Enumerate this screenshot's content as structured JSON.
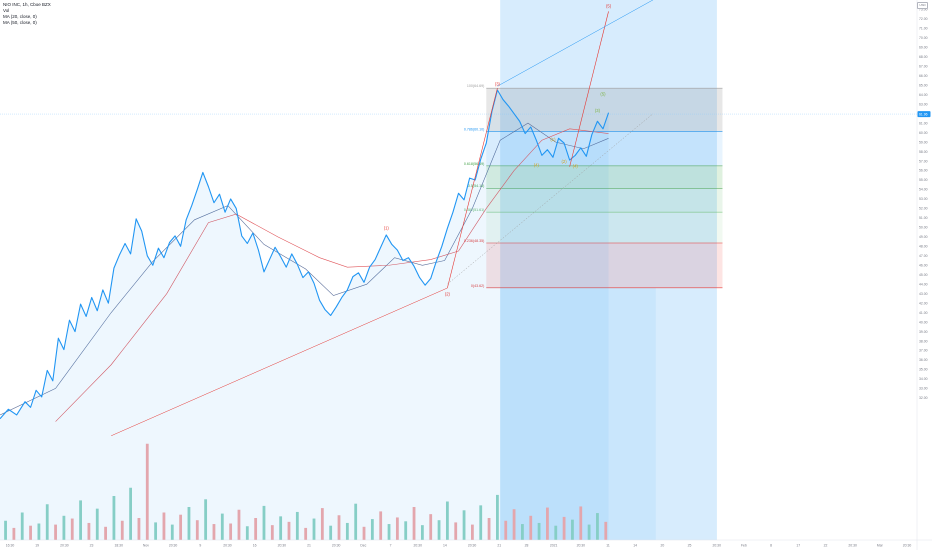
{
  "legend": {
    "symbol_line": "NIO INC, 1h, Cboe BZX",
    "vol_label": "Vol",
    "ma1_label": "MA (20, close, 0)",
    "ma2_label": "MA (50, close, 0)"
  },
  "toolbar": {
    "settings_label": "USD"
  },
  "colors": {
    "price_line": "#2196f3",
    "ma_fast": "#5b6e9a",
    "ma_slow": "#e0565b",
    "vol_up": "#8fd3c3",
    "vol_down": "#f3a8a8",
    "accent_red": "#e53935",
    "accent_green": "#66bb6a",
    "projection_blue": "#2196f3"
  },
  "chart_data": {
    "type": "line",
    "title": "NIO INC, 1h, Cboe BZX",
    "ylim": [
      17.0,
      74.0
    ],
    "ytick_labels": [
      "74.00",
      "73.00",
      "72.00",
      "71.00",
      "70.00",
      "69.00",
      "68.00",
      "67.00",
      "66.00",
      "65.00",
      "64.00",
      "63.00",
      "62.00",
      "61.00",
      "60.00",
      "59.00",
      "58.00",
      "57.00",
      "56.00",
      "55.00",
      "54.00",
      "53.00",
      "52.00",
      "51.00",
      "50.00",
      "49.00",
      "48.00",
      "47.00",
      "46.00",
      "45.00",
      "44.00",
      "43.00",
      "42.00",
      "41.00",
      "40.00",
      "39.00",
      "38.00",
      "37.00",
      "36.00",
      "35.00",
      "34.00",
      "33.00",
      "32.00"
    ],
    "xtick_labels": [
      "16:30",
      "19",
      "20:30",
      "23",
      "18:30",
      "Nov",
      "20:30",
      "9",
      "20:30",
      "16",
      "20:30",
      "21",
      "20:30",
      "Dec",
      "7",
      "20:30",
      "14",
      "20:30",
      "21",
      "28",
      "2021",
      "20:30",
      "11",
      "14",
      "20",
      "25",
      "20:30",
      "Feb",
      "8",
      "17",
      "22",
      "20:30",
      "Mar",
      "20:30"
    ],
    "current_price": "61.96",
    "price": [
      {
        "x": 0,
        "y": 29.8
      },
      {
        "x": 3,
        "y": 30.8
      },
      {
        "x": 6,
        "y": 30.2
      },
      {
        "x": 9,
        "y": 31.6
      },
      {
        "x": 11,
        "y": 31.0
      },
      {
        "x": 13,
        "y": 32.8
      },
      {
        "x": 15,
        "y": 32.1
      },
      {
        "x": 17,
        "y": 34.9
      },
      {
        "x": 19,
        "y": 33.8
      },
      {
        "x": 21,
        "y": 38.3
      },
      {
        "x": 23,
        "y": 37.1
      },
      {
        "x": 25,
        "y": 40.2
      },
      {
        "x": 27,
        "y": 39.0
      },
      {
        "x": 29,
        "y": 41.9
      },
      {
        "x": 31,
        "y": 40.6
      },
      {
        "x": 33,
        "y": 42.6
      },
      {
        "x": 35,
        "y": 41.2
      },
      {
        "x": 37,
        "y": 43.4
      },
      {
        "x": 39,
        "y": 42.0
      },
      {
        "x": 41,
        "y": 45.7
      },
      {
        "x": 43,
        "y": 47.1
      },
      {
        "x": 45,
        "y": 48.3
      },
      {
        "x": 47,
        "y": 47.2
      },
      {
        "x": 49,
        "y": 50.9
      },
      {
        "x": 51,
        "y": 49.6
      },
      {
        "x": 53,
        "y": 47.0
      },
      {
        "x": 55,
        "y": 46.0
      },
      {
        "x": 57,
        "y": 47.8
      },
      {
        "x": 59,
        "y": 46.8
      },
      {
        "x": 61,
        "y": 48.4
      },
      {
        "x": 63,
        "y": 49.1
      },
      {
        "x": 65,
        "y": 48.0
      },
      {
        "x": 67,
        "y": 50.8
      },
      {
        "x": 69,
        "y": 52.3
      },
      {
        "x": 71,
        "y": 54.0
      },
      {
        "x": 73,
        "y": 55.8
      },
      {
        "x": 75,
        "y": 54.3
      },
      {
        "x": 77,
        "y": 52.6
      },
      {
        "x": 79,
        "y": 53.5
      },
      {
        "x": 81,
        "y": 51.6
      },
      {
        "x": 83,
        "y": 53.0
      },
      {
        "x": 85,
        "y": 52.0
      },
      {
        "x": 87,
        "y": 49.1
      },
      {
        "x": 89,
        "y": 48.3
      },
      {
        "x": 91,
        "y": 49.4
      },
      {
        "x": 93,
        "y": 47.6
      },
      {
        "x": 95,
        "y": 45.3
      },
      {
        "x": 97,
        "y": 46.6
      },
      {
        "x": 99,
        "y": 47.9
      },
      {
        "x": 101,
        "y": 46.9
      },
      {
        "x": 103,
        "y": 45.8
      },
      {
        "x": 105,
        "y": 47.2
      },
      {
        "x": 107,
        "y": 46.1
      },
      {
        "x": 109,
        "y": 44.7
      },
      {
        "x": 111,
        "y": 45.3
      },
      {
        "x": 113,
        "y": 44.1
      },
      {
        "x": 115,
        "y": 42.3
      },
      {
        "x": 117,
        "y": 41.3
      },
      {
        "x": 119,
        "y": 40.7
      },
      {
        "x": 121,
        "y": 41.6
      },
      {
        "x": 123,
        "y": 42.6
      },
      {
        "x": 125,
        "y": 43.4
      },
      {
        "x": 127,
        "y": 44.8
      },
      {
        "x": 129,
        "y": 45.2
      },
      {
        "x": 131,
        "y": 44.2
      },
      {
        "x": 133,
        "y": 45.8
      },
      {
        "x": 135,
        "y": 46.6
      },
      {
        "x": 137,
        "y": 47.9
      },
      {
        "x": 139,
        "y": 49.2
      },
      {
        "x": 141,
        "y": 48.2
      },
      {
        "x": 143,
        "y": 47.6
      },
      {
        "x": 145,
        "y": 46.5
      },
      {
        "x": 147,
        "y": 46.8
      },
      {
        "x": 149,
        "y": 45.9
      },
      {
        "x": 151,
        "y": 44.7
      },
      {
        "x": 153,
        "y": 43.9
      },
      {
        "x": 155,
        "y": 44.6
      },
      {
        "x": 157,
        "y": 46.4
      },
      {
        "x": 159,
        "y": 48.0
      },
      {
        "x": 161,
        "y": 49.9
      },
      {
        "x": 163,
        "y": 51.6
      },
      {
        "x": 165,
        "y": 53.6
      },
      {
        "x": 167,
        "y": 52.9
      },
      {
        "x": 169,
        "y": 55.2
      },
      {
        "x": 171,
        "y": 55.0
      },
      {
        "x": 173,
        "y": 57.2
      },
      {
        "x": 175,
        "y": 58.9
      },
      {
        "x": 177,
        "y": 62.2
      },
      {
        "x": 179,
        "y": 64.5
      },
      {
        "x": 181,
        "y": 63.5
      },
      {
        "x": 183,
        "y": 62.8
      },
      {
        "x": 185,
        "y": 62.0
      },
      {
        "x": 187,
        "y": 61.2
      },
      {
        "x": 189,
        "y": 59.9
      },
      {
        "x": 191,
        "y": 60.6
      },
      {
        "x": 193,
        "y": 59.2
      },
      {
        "x": 195,
        "y": 57.6
      },
      {
        "x": 197,
        "y": 58.2
      },
      {
        "x": 199,
        "y": 57.4
      },
      {
        "x": 201,
        "y": 59.4
      },
      {
        "x": 203,
        "y": 58.9
      },
      {
        "x": 205,
        "y": 57.1
      },
      {
        "x": 207,
        "y": 57.6
      },
      {
        "x": 209,
        "y": 58.4
      },
      {
        "x": 211,
        "y": 57.5
      },
      {
        "x": 213,
        "y": 59.8
      },
      {
        "x": 215,
        "y": 61.2
      },
      {
        "x": 217,
        "y": 60.4
      },
      {
        "x": 219,
        "y": 62.1
      }
    ],
    "ma_fast": [
      {
        "x": 0,
        "y": 30.2
      },
      {
        "x": 20,
        "y": 33.0
      },
      {
        "x": 40,
        "y": 41.0
      },
      {
        "x": 55,
        "y": 46.4
      },
      {
        "x": 70,
        "y": 50.8
      },
      {
        "x": 82,
        "y": 52.3
      },
      {
        "x": 95,
        "y": 48.2
      },
      {
        "x": 110,
        "y": 45.6
      },
      {
        "x": 120,
        "y": 42.8
      },
      {
        "x": 132,
        "y": 44.0
      },
      {
        "x": 142,
        "y": 46.8
      },
      {
        "x": 152,
        "y": 46.0
      },
      {
        "x": 160,
        "y": 46.5
      },
      {
        "x": 170,
        "y": 52.0
      },
      {
        "x": 180,
        "y": 59.2
      },
      {
        "x": 190,
        "y": 61.0
      },
      {
        "x": 200,
        "y": 59.0
      },
      {
        "x": 210,
        "y": 58.3
      },
      {
        "x": 219,
        "y": 59.4
      }
    ],
    "ma_slow": [
      {
        "x": 20,
        "y": 29.5
      },
      {
        "x": 40,
        "y": 35.5
      },
      {
        "x": 60,
        "y": 43.0
      },
      {
        "x": 75,
        "y": 50.5
      },
      {
        "x": 85,
        "y": 51.4
      },
      {
        "x": 100,
        "y": 49.0
      },
      {
        "x": 115,
        "y": 46.8
      },
      {
        "x": 125,
        "y": 45.8
      },
      {
        "x": 140,
        "y": 46.0
      },
      {
        "x": 155,
        "y": 46.6
      },
      {
        "x": 165,
        "y": 47.5
      },
      {
        "x": 175,
        "y": 52.0
      },
      {
        "x": 185,
        "y": 56.0
      },
      {
        "x": 195,
        "y": 59.2
      },
      {
        "x": 205,
        "y": 60.4
      },
      {
        "x": 219,
        "y": 59.9
      }
    ],
    "volume": [
      {
        "x": 2,
        "v": 3.5,
        "d": "up"
      },
      {
        "x": 5,
        "v": 2.2,
        "d": "down"
      },
      {
        "x": 8,
        "v": 5.0,
        "d": "up"
      },
      {
        "x": 11,
        "v": 2.6,
        "d": "down"
      },
      {
        "x": 14,
        "v": 3.0,
        "d": "up"
      },
      {
        "x": 17,
        "v": 6.5,
        "d": "up"
      },
      {
        "x": 20,
        "v": 2.8,
        "d": "down"
      },
      {
        "x": 23,
        "v": 4.4,
        "d": "up"
      },
      {
        "x": 26,
        "v": 3.9,
        "d": "down"
      },
      {
        "x": 29,
        "v": 7.2,
        "d": "up"
      },
      {
        "x": 32,
        "v": 3.1,
        "d": "down"
      },
      {
        "x": 35,
        "v": 5.7,
        "d": "up"
      },
      {
        "x": 38,
        "v": 2.4,
        "d": "down"
      },
      {
        "x": 41,
        "v": 8.0,
        "d": "up"
      },
      {
        "x": 44,
        "v": 3.5,
        "d": "down"
      },
      {
        "x": 47,
        "v": 9.5,
        "d": "up"
      },
      {
        "x": 50,
        "v": 4.0,
        "d": "down"
      },
      {
        "x": 53,
        "v": 17.5,
        "d": "down"
      },
      {
        "x": 56,
        "v": 3.2,
        "d": "up"
      },
      {
        "x": 59,
        "v": 5.0,
        "d": "down"
      },
      {
        "x": 62,
        "v": 2.8,
        "d": "up"
      },
      {
        "x": 65,
        "v": 4.6,
        "d": "down"
      },
      {
        "x": 68,
        "v": 6.0,
        "d": "up"
      },
      {
        "x": 71,
        "v": 3.6,
        "d": "down"
      },
      {
        "x": 74,
        "v": 7.4,
        "d": "up"
      },
      {
        "x": 77,
        "v": 2.9,
        "d": "down"
      },
      {
        "x": 80,
        "v": 4.8,
        "d": "up"
      },
      {
        "x": 83,
        "v": 3.0,
        "d": "down"
      },
      {
        "x": 86,
        "v": 5.5,
        "d": "down"
      },
      {
        "x": 89,
        "v": 2.5,
        "d": "up"
      },
      {
        "x": 92,
        "v": 4.0,
        "d": "down"
      },
      {
        "x": 95,
        "v": 6.2,
        "d": "up"
      },
      {
        "x": 98,
        "v": 2.7,
        "d": "down"
      },
      {
        "x": 101,
        "v": 4.3,
        "d": "up"
      },
      {
        "x": 104,
        "v": 3.3,
        "d": "down"
      },
      {
        "x": 107,
        "v": 5.1,
        "d": "up"
      },
      {
        "x": 110,
        "v": 2.2,
        "d": "down"
      },
      {
        "x": 113,
        "v": 3.9,
        "d": "up"
      },
      {
        "x": 116,
        "v": 5.8,
        "d": "down"
      },
      {
        "x": 119,
        "v": 2.6,
        "d": "up"
      },
      {
        "x": 122,
        "v": 4.5,
        "d": "down"
      },
      {
        "x": 125,
        "v": 3.1,
        "d": "up"
      },
      {
        "x": 128,
        "v": 6.6,
        "d": "up"
      },
      {
        "x": 131,
        "v": 2.4,
        "d": "down"
      },
      {
        "x": 134,
        "v": 3.8,
        "d": "up"
      },
      {
        "x": 137,
        "v": 5.2,
        "d": "down"
      },
      {
        "x": 140,
        "v": 2.9,
        "d": "up"
      },
      {
        "x": 143,
        "v": 4.1,
        "d": "down"
      },
      {
        "x": 146,
        "v": 3.4,
        "d": "up"
      },
      {
        "x": 149,
        "v": 6.0,
        "d": "down"
      },
      {
        "x": 152,
        "v": 2.7,
        "d": "up"
      },
      {
        "x": 155,
        "v": 4.7,
        "d": "down"
      },
      {
        "x": 158,
        "v": 3.6,
        "d": "up"
      },
      {
        "x": 161,
        "v": 7.0,
        "d": "up"
      },
      {
        "x": 164,
        "v": 3.2,
        "d": "down"
      },
      {
        "x": 167,
        "v": 5.4,
        "d": "up"
      },
      {
        "x": 170,
        "v": 2.8,
        "d": "down"
      },
      {
        "x": 173,
        "v": 6.3,
        "d": "up"
      },
      {
        "x": 176,
        "v": 4.0,
        "d": "down"
      },
      {
        "x": 179,
        "v": 8.2,
        "d": "up"
      },
      {
        "x": 182,
        "v": 3.5,
        "d": "down"
      },
      {
        "x": 185,
        "v": 5.6,
        "d": "down"
      },
      {
        "x": 188,
        "v": 2.9,
        "d": "up"
      },
      {
        "x": 191,
        "v": 4.4,
        "d": "down"
      },
      {
        "x": 194,
        "v": 3.1,
        "d": "up"
      },
      {
        "x": 197,
        "v": 5.9,
        "d": "down"
      },
      {
        "x": 200,
        "v": 2.6,
        "d": "up"
      },
      {
        "x": 203,
        "v": 4.2,
        "d": "down"
      },
      {
        "x": 206,
        "v": 3.7,
        "d": "up"
      },
      {
        "x": 209,
        "v": 6.1,
        "d": "down"
      },
      {
        "x": 212,
        "v": 2.8,
        "d": "up"
      },
      {
        "x": 215,
        "v": 4.9,
        "d": "up"
      },
      {
        "x": 218,
        "v": 3.3,
        "d": "down"
      }
    ],
    "fib_levels": [
      {
        "label": "100(64.69)",
        "y": 64.69,
        "color": "#9e9e9e",
        "fill": "rgba(120,120,120,0.18)"
      },
      {
        "label": "0.786(60.10)",
        "y": 60.1,
        "color": "#2196f3",
        "fill": "rgba(33,150,243,0.10)"
      },
      {
        "label": "0.618(56.49)",
        "y": 56.49,
        "color": "#43a047",
        "fill": "rgba(76,175,80,0.18)"
      },
      {
        "label": "0.5(54.13)",
        "y": 54.13,
        "color": "#43a047",
        "fill": "rgba(76,175,80,0.12)"
      },
      {
        "label": "0.382(51.61)",
        "y": 51.61,
        "color": "#66bb6a",
        "fill": "rgba(76,175,80,0.08)"
      },
      {
        "label": "0.236(48.35)",
        "y": 48.35,
        "color": "#e53935",
        "fill": "rgba(244,67,54,0.14)"
      },
      {
        "label": "0(43.62)",
        "y": 43.62,
        "color": "#e53935",
        "fill": null
      }
    ],
    "wave_labels": [
      {
        "text": "(1)",
        "x": 139,
        "y": 49.8,
        "color": "#e53935"
      },
      {
        "text": "(2)",
        "x": 161,
        "y": 42.8,
        "color": "#e53935"
      },
      {
        "text": "(3)",
        "x": 179,
        "y": 65.0,
        "color": "#e53935"
      },
      {
        "text": "(4)",
        "x": 193,
        "y": 56.4,
        "color": "#d4a017"
      },
      {
        "text": "(5)",
        "x": 219,
        "y": 73.2,
        "color": "#e53935"
      },
      {
        "text": "(1)",
        "x": 199,
        "y": 59.1,
        "color": "#d4a017"
      },
      {
        "text": "(2)",
        "x": 203,
        "y": 56.8,
        "color": "#d4a017"
      },
      {
        "text": "(3)",
        "x": 215,
        "y": 62.2,
        "color": "#7cb342"
      },
      {
        "text": "(5)",
        "x": 217,
        "y": 63.9,
        "color": "#7cb342"
      },
      {
        "text": "(4)",
        "x": 207,
        "y": 56.3,
        "color": "#d4a017"
      }
    ]
  }
}
